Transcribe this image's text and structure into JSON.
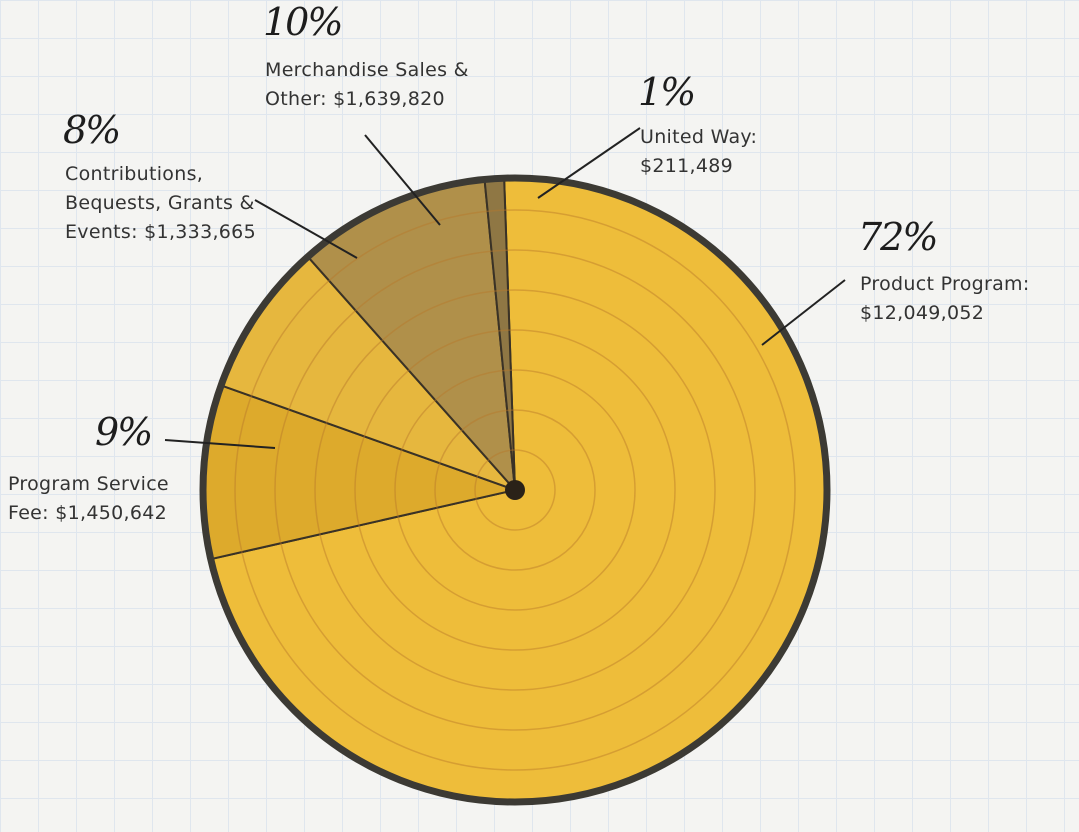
{
  "chart_data": {
    "type": "pie",
    "categories": [
      "Product Program: $12,049,052",
      "Program Service Fee: $1,450,642",
      "Contributions, Bequests, Grants & Events: $1,333,665",
      "Merchandise Sales & Other: $1,639,820",
      "United Way: $211,489"
    ],
    "values": [
      72,
      9,
      8,
      10,
      1
    ],
    "value_labels": [
      "72%",
      "9%",
      "8%",
      "10%",
      "1%"
    ],
    "colors": [
      "#eebd3a",
      "#ddaa2c",
      "#e6b73e",
      "#b0904a",
      "#8f7744"
    ]
  }
}
